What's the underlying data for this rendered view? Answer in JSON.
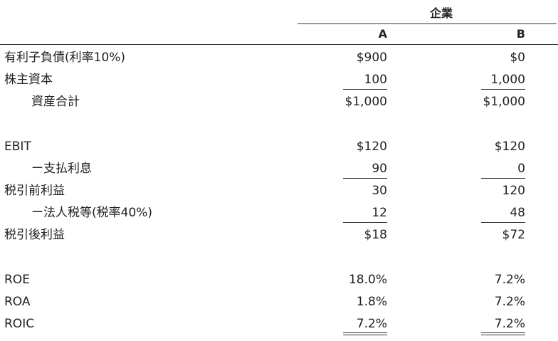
{
  "header": {
    "group_label": "企業",
    "col_a": "A",
    "col_b": "B"
  },
  "rows": [
    {
      "label": "有利子負債(利率10%)",
      "a": "$900",
      "b": "$0"
    },
    {
      "label": "株主資本",
      "a": "100",
      "b": "1,000"
    },
    {
      "label": "資産合計",
      "a": "$1,000",
      "b": "$1,000"
    },
    {
      "label": "EBIT",
      "a": "$120",
      "b": "$120"
    },
    {
      "label": "ー支払利息",
      "a": "90",
      "b": "0"
    },
    {
      "label": "税引前利益",
      "a": "30",
      "b": "120"
    },
    {
      "label": "ー法人税等(税率40%)",
      "a": "12",
      "b": "48"
    },
    {
      "label": "税引後利益",
      "a": "$18",
      "b": "$72"
    },
    {
      "label": "ROE",
      "a": "18.0%",
      "b": "7.2%"
    },
    {
      "label": "ROA",
      "a": "1.8%",
      "b": "7.2%"
    },
    {
      "label": "ROIC",
      "a": "7.2%",
      "b": "7.2%"
    }
  ]
}
